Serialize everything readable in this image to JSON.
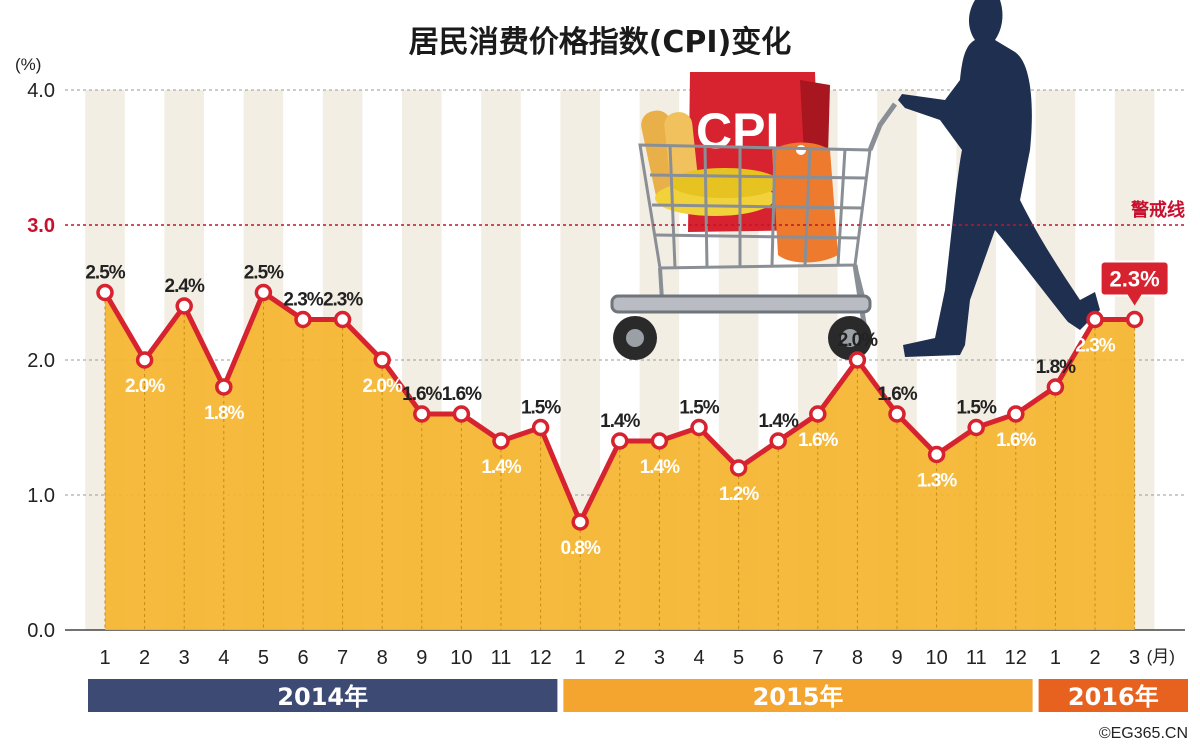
{
  "title": "居民消费价格指数(CPI)变化",
  "copyright": "©EG365.CN",
  "colors": {
    "line": "#d7232f",
    "area": "#f5b52e",
    "stripe": "#f3eee3",
    "year_2014": "#3d4a73",
    "year_2015": "#f3a530",
    "year_2016": "#e8621f",
    "warning": "#c8102e"
  },
  "illustration": {
    "name": "shopper-with-cart",
    "cart_sign_text": "CPI"
  },
  "chart_data": {
    "type": "area",
    "title": "居民消费价格指数(CPI)变化",
    "y_unit_label": "(%)",
    "x_unit_label": "(月)",
    "ylim": [
      0,
      4
    ],
    "yticks": [
      "0.0",
      "1.0",
      "2.0",
      "3.0",
      "4.0"
    ],
    "grid": true,
    "categories": [
      "1",
      "2",
      "3",
      "4",
      "5",
      "6",
      "7",
      "8",
      "9",
      "10",
      "11",
      "12",
      "1",
      "2",
      "3",
      "4",
      "5",
      "6",
      "7",
      "8",
      "9",
      "10",
      "11",
      "12",
      "1",
      "2",
      "3"
    ],
    "values": [
      2.5,
      2.0,
      2.4,
      1.8,
      2.5,
      2.3,
      2.3,
      2.0,
      1.6,
      1.6,
      1.4,
      1.5,
      0.8,
      1.4,
      1.4,
      1.5,
      1.2,
      1.4,
      1.6,
      2.0,
      1.6,
      1.3,
      1.5,
      1.6,
      1.8,
      2.3,
      2.3
    ],
    "value_labels": [
      "2.5%",
      "2.0%",
      "2.4%",
      "1.8%",
      "2.5%",
      "2.3%",
      "2.3%",
      "2.0%",
      "1.6%",
      "1.6%",
      "1.4%",
      "1.5%",
      "0.8%",
      "1.4%",
      "1.4%",
      "1.5%",
      "1.2%",
      "1.4%",
      "1.6%",
      "2.0%",
      "1.6%",
      "1.3%",
      "1.5%",
      "1.6%",
      "1.8%",
      "2.3%",
      "2.3%"
    ],
    "label_positions": [
      "above",
      "below",
      "above",
      "below",
      "above",
      "above",
      "above",
      "below",
      "above",
      "above",
      "below",
      "above",
      "below",
      "above",
      "below",
      "above",
      "below",
      "above",
      "below",
      "above",
      "above",
      "below",
      "above",
      "below",
      "above",
      "below",
      "callout"
    ],
    "warning_line": {
      "value": 3.0,
      "label": "警戒线"
    },
    "years": [
      {
        "label": "2014年",
        "start": 0,
        "end": 11
      },
      {
        "label": "2015年",
        "start": 12,
        "end": 23
      },
      {
        "label": "2016年",
        "start": 24,
        "end": 26
      }
    ]
  }
}
